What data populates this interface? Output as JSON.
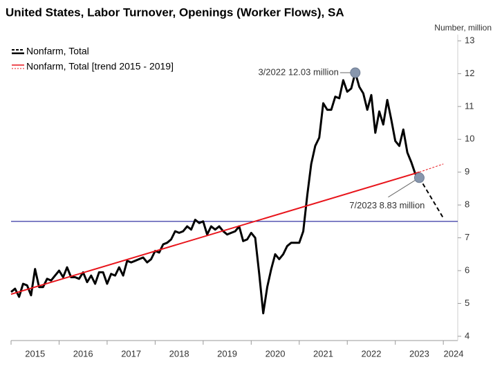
{
  "chart_data": {
    "type": "line",
    "title": "United States, Labor Turnover, Openings (Worker Flows), SA",
    "y_axis_label": "Number, million",
    "x": [
      "1/2015",
      "2/2015",
      "3/2015",
      "4/2015",
      "5/2015",
      "6/2015",
      "7/2015",
      "8/2015",
      "9/2015",
      "10/2015",
      "11/2015",
      "12/2015",
      "1/2016",
      "2/2016",
      "3/2016",
      "4/2016",
      "5/2016",
      "6/2016",
      "7/2016",
      "8/2016",
      "9/2016",
      "10/2016",
      "11/2016",
      "12/2016",
      "1/2017",
      "2/2017",
      "3/2017",
      "4/2017",
      "5/2017",
      "6/2017",
      "7/2017",
      "8/2017",
      "9/2017",
      "10/2017",
      "11/2017",
      "12/2017",
      "1/2018",
      "2/2018",
      "3/2018",
      "4/2018",
      "5/2018",
      "6/2018",
      "7/2018",
      "8/2018",
      "9/2018",
      "10/2018",
      "11/2018",
      "12/2018",
      "1/2019",
      "2/2019",
      "3/2019",
      "4/2019",
      "5/2019",
      "6/2019",
      "7/2019",
      "8/2019",
      "9/2019",
      "10/2019",
      "11/2019",
      "12/2019",
      "1/2020",
      "2/2020",
      "3/2020",
      "4/2020",
      "5/2020",
      "6/2020",
      "7/2020",
      "8/2020",
      "9/2020",
      "10/2020",
      "11/2020",
      "12/2020",
      "1/2021",
      "2/2021",
      "3/2021",
      "4/2021",
      "5/2021",
      "6/2021",
      "7/2021",
      "8/2021",
      "9/2021",
      "10/2021",
      "11/2021",
      "12/2021",
      "1/2022",
      "2/2022",
      "3/2022",
      "4/2022",
      "5/2022",
      "6/2022",
      "7/2022",
      "8/2022",
      "9/2022",
      "10/2022",
      "11/2022",
      "12/2022",
      "1/2023",
      "2/2023",
      "3/2023",
      "4/2023",
      "5/2023",
      "6/2023",
      "7/2023"
    ],
    "series": [
      {
        "name": "Nonfarm, Total",
        "color": "#000000",
        "values": [
          5.35,
          5.45,
          5.2,
          5.6,
          5.55,
          5.25,
          6.05,
          5.5,
          5.5,
          5.75,
          5.7,
          5.85,
          6.0,
          5.8,
          6.1,
          5.8,
          5.8,
          5.75,
          5.95,
          5.65,
          5.85,
          5.6,
          5.95,
          5.95,
          5.6,
          5.9,
          5.85,
          6.1,
          5.85,
          6.3,
          6.25,
          6.3,
          6.35,
          6.4,
          6.25,
          6.35,
          6.6,
          6.55,
          6.8,
          6.85,
          6.95,
          7.2,
          7.15,
          7.2,
          7.35,
          7.25,
          7.55,
          7.45,
          7.5,
          7.1,
          7.35,
          7.25,
          7.35,
          7.2,
          7.1,
          7.15,
          7.2,
          7.35,
          6.9,
          6.95,
          7.15,
          7.0,
          5.9,
          4.7,
          5.5,
          6.05,
          6.5,
          6.35,
          6.5,
          6.75,
          6.85,
          6.85,
          6.85,
          7.2,
          8.3,
          9.25,
          9.8,
          10.05,
          11.1,
          10.9,
          10.9,
          11.3,
          11.25,
          11.8,
          11.45,
          11.55,
          12.03,
          11.6,
          11.4,
          10.9,
          11.35,
          10.2,
          10.85,
          10.45,
          11.2,
          10.6,
          9.95,
          9.8,
          10.3,
          9.6,
          9.3,
          8.95,
          8.83
        ],
        "forecast": {
          "x": [
            "7/2023",
            "1/2024"
          ],
          "values": [
            8.83,
            7.6
          ]
        }
      },
      {
        "name": "Nonfarm, Total [trend 2015 - 2019]",
        "color": "#e8141b",
        "x": [
          "1/2015",
          "7/2023"
        ],
        "values": [
          5.28,
          9.0
        ],
        "forecast": {
          "x": [
            "7/2023",
            "1/2024"
          ],
          "values": [
            9.0,
            9.25
          ]
        }
      }
    ],
    "reference_line": {
      "value": 7.5,
      "color": "#00008b"
    },
    "annotations": [
      {
        "text": "3/2022 12.03 million",
        "x": "3/2022",
        "y": 12.03
      },
      {
        "text": "7/2023 8.83 million",
        "x": "7/2023",
        "y": 8.83
      }
    ],
    "xlim": [
      2015,
      2024.3
    ],
    "xticks": [
      2015,
      2016,
      2017,
      2018,
      2019,
      2020,
      2021,
      2022,
      2023,
      2024
    ],
    "ylim": [
      3.87,
      13.19
    ],
    "yticks": [
      4,
      5,
      6,
      7,
      8,
      9,
      10,
      11,
      12,
      13
    ],
    "legend": "top-left"
  }
}
